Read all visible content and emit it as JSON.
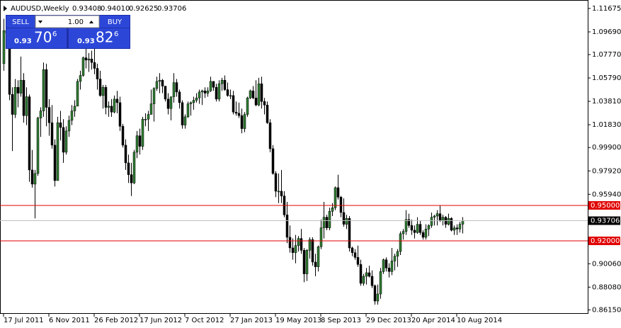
{
  "chart_data": {
    "type": "candlestick",
    "header": {
      "symbol": "AUDUSD,Weekly",
      "values": [
        "0.93408",
        "0.94010",
        "0.92625",
        "0.93706"
      ]
    },
    "trade_panel": {
      "sell": "SELL",
      "lot": "1.00",
      "buy": "BUY",
      "sell_big": "0.93",
      "sell_pips": "70",
      "sell_frac": "6",
      "buy_big": "0.93",
      "buy_pips": "82",
      "buy_frac": "6"
    },
    "bull_color": "#2f7d32",
    "bear_color": "#000000",
    "ylim": [
      0.8582,
      1.1209
    ],
    "yticks": [
      {
        "value": 1.11675,
        "label": "1.11675"
      },
      {
        "value": 1.0969,
        "label": "1.09690"
      },
      {
        "value": 1.0777,
        "label": "1.07770"
      },
      {
        "value": 1.0579,
        "label": "1.05790"
      },
      {
        "value": 1.0381,
        "label": "1.03810"
      },
      {
        "value": 1.0183,
        "label": "1.01830"
      },
      {
        "value": 0.999,
        "label": "0.99900"
      },
      {
        "value": 0.9792,
        "label": "0.97920"
      },
      {
        "value": 0.9594,
        "label": "0.95940"
      },
      {
        "value": 0.9006,
        "label": "0.90060"
      },
      {
        "value": 0.8808,
        "label": "0.88080"
      },
      {
        "value": 0.8615,
        "label": "0.86150"
      }
    ],
    "levels": [
      {
        "value": 0.95,
        "label": "0.95000",
        "color": "#e00000"
      },
      {
        "value": 0.92,
        "label": "0.92000",
        "color": "#e00000"
      },
      {
        "value": 0.93706,
        "label": "0.93706",
        "color": "#000000"
      }
    ],
    "categories": [
      "17 Jul 2011",
      null,
      null,
      null,
      null,
      null,
      null,
      null,
      null,
      null,
      null,
      null,
      null,
      null,
      null,
      null,
      "6 Nov 2011",
      null,
      null,
      null,
      null,
      null,
      null,
      null,
      null,
      null,
      null,
      null,
      null,
      null,
      null,
      null,
      "26 Feb 2012",
      null,
      null,
      null,
      null,
      null,
      null,
      null,
      null,
      null,
      null,
      null,
      null,
      null,
      null,
      null,
      "17 Jun 2012",
      null,
      null,
      null,
      null,
      null,
      null,
      null,
      null,
      null,
      null,
      null,
      null,
      null,
      null,
      null,
      "7 Oct 2012",
      null,
      null,
      null,
      null,
      null,
      null,
      null,
      null,
      null,
      null,
      null,
      null,
      null,
      null,
      null,
      "27 Jan 2013",
      null,
      null,
      null,
      null,
      null,
      null,
      null,
      null,
      null,
      null,
      null,
      null,
      null,
      null,
      null,
      "19 May 2013",
      null,
      null,
      null,
      null,
      null,
      null,
      null,
      null,
      null,
      null,
      null,
      null,
      null,
      null,
      null,
      "8 Sep 2013",
      null,
      null,
      null,
      null,
      null,
      null,
      null,
      null,
      null,
      null,
      null,
      null,
      null,
      null,
      null,
      "29 Dec 2013",
      null,
      null,
      null,
      null,
      null,
      null,
      null,
      null,
      null,
      null,
      null,
      null,
      null,
      null,
      null,
      "20 Apr 2014",
      null,
      null,
      null,
      null,
      null,
      null,
      null,
      null,
      null,
      null,
      null,
      null,
      null,
      null,
      null,
      "10 Aug 2014",
      null,
      null
    ],
    "ohlc": [
      [
        1.07,
        1.108,
        1.064,
        1.098
      ],
      [
        1.098,
        1.108,
        1.09,
        1.096
      ],
      [
        1.096,
        1.101,
        1.039,
        1.044
      ],
      [
        1.044,
        1.05,
        0.996,
        1.027
      ],
      [
        1.027,
        1.057,
        1.024,
        1.05
      ],
      [
        1.05,
        1.056,
        1.033,
        1.045
      ],
      [
        1.045,
        1.076,
        1.042,
        1.056
      ],
      [
        1.056,
        1.062,
        1.02,
        1.026
      ],
      [
        1.026,
        1.05,
        1.018,
        1.042
      ],
      [
        1.042,
        1.044,
        0.97,
        0.98
      ],
      [
        0.98,
        0.997,
        0.965,
        0.968
      ],
      [
        0.968,
        0.98,
        0.939,
        0.977
      ],
      [
        0.977,
        1.025,
        0.975,
        1.024
      ],
      [
        1.024,
        1.033,
        1.008,
        1.03
      ],
      [
        1.03,
        1.071,
        1.025,
        1.065
      ],
      [
        1.065,
        1.07,
        1.017,
        1.033
      ],
      [
        1.033,
        1.04,
        1.009,
        1.02
      ],
      [
        1.02,
        1.035,
        0.998,
        1.001
      ],
      [
        1.001,
        1.006,
        0.966,
        0.971
      ],
      [
        0.971,
        1.025,
        0.971,
        1.02
      ],
      [
        1.02,
        1.03,
        1.005,
        1.016
      ],
      [
        1.016,
        1.023,
        0.986,
        0.995
      ],
      [
        0.995,
        1.017,
        0.993,
        1.013
      ],
      [
        1.013,
        1.026,
        1.008,
        1.022
      ],
      [
        1.022,
        1.035,
        1.018,
        1.03
      ],
      [
        1.03,
        1.039,
        1.025,
        1.034
      ],
      [
        1.034,
        1.057,
        1.034,
        1.055
      ],
      [
        1.055,
        1.064,
        1.048,
        1.06
      ],
      [
        1.06,
        1.076,
        1.059,
        1.075
      ],
      [
        1.075,
        1.084,
        1.066,
        1.073
      ],
      [
        1.073,
        1.079,
        1.063,
        1.074
      ],
      [
        1.074,
        1.081,
        1.065,
        1.071
      ],
      [
        1.071,
        1.086,
        1.061,
        1.066
      ],
      [
        1.066,
        1.07,
        1.048,
        1.057
      ],
      [
        1.057,
        1.064,
        1.042,
        1.043
      ],
      [
        1.043,
        1.052,
        1.032,
        1.05
      ],
      [
        1.05,
        1.052,
        1.027,
        1.033
      ],
      [
        1.033,
        1.038,
        1.025,
        1.034
      ],
      [
        1.034,
        1.04,
        1.025,
        1.029
      ],
      [
        1.029,
        1.043,
        1.028,
        1.04
      ],
      [
        1.04,
        1.047,
        1.028,
        1.037
      ],
      [
        1.037,
        1.042,
        1.013,
        1.017
      ],
      [
        1.017,
        1.019,
        0.999,
        1.001
      ],
      [
        1.001,
        1.006,
        0.98,
        0.986
      ],
      [
        0.986,
        0.993,
        0.969,
        0.976
      ],
      [
        0.976,
        0.986,
        0.958,
        0.969
      ],
      [
        0.969,
        0.997,
        0.968,
        0.995
      ],
      [
        0.995,
        1.013,
        0.99,
        1.009
      ],
      [
        1.009,
        1.015,
        0.993,
        1.0
      ],
      [
        1.0,
        1.025,
        0.997,
        1.023
      ],
      [
        1.023,
        1.028,
        1.017,
        1.023
      ],
      [
        1.023,
        1.03,
        1.013,
        1.027
      ],
      [
        1.027,
        1.048,
        1.027,
        1.036
      ],
      [
        1.036,
        1.05,
        1.021,
        1.049
      ],
      [
        1.049,
        1.059,
        1.047,
        1.055
      ],
      [
        1.055,
        1.062,
        1.045,
        1.056
      ],
      [
        1.056,
        1.057,
        1.045,
        1.051
      ],
      [
        1.051,
        1.051,
        1.038,
        1.04
      ],
      [
        1.04,
        1.045,
        1.027,
        1.032
      ],
      [
        1.032,
        1.042,
        1.022,
        1.042
      ],
      [
        1.042,
        1.062,
        1.037,
        1.054
      ],
      [
        1.054,
        1.057,
        1.042,
        1.046
      ],
      [
        1.046,
        1.048,
        1.032,
        1.037
      ],
      [
        1.037,
        1.039,
        1.015,
        1.018
      ],
      [
        1.018,
        1.027,
        1.015,
        1.025
      ],
      [
        1.025,
        1.038,
        1.024,
        1.036
      ],
      [
        1.036,
        1.038,
        1.026,
        1.037
      ],
      [
        1.037,
        1.042,
        1.031,
        1.039
      ],
      [
        1.039,
        1.045,
        1.037,
        1.041
      ],
      [
        1.041,
        1.048,
        1.036,
        1.046
      ],
      [
        1.046,
        1.048,
        1.035,
        1.047
      ],
      [
        1.047,
        1.05,
        1.041,
        1.045
      ],
      [
        1.045,
        1.05,
        1.042,
        1.047
      ],
      [
        1.047,
        1.059,
        1.046,
        1.055
      ],
      [
        1.055,
        1.055,
        1.047,
        1.05
      ],
      [
        1.05,
        1.053,
        1.038,
        1.04
      ],
      [
        1.04,
        1.056,
        1.038,
        1.053
      ],
      [
        1.053,
        1.058,
        1.047,
        1.056
      ],
      [
        1.056,
        1.06,
        1.047,
        1.048
      ],
      [
        1.048,
        1.054,
        1.042,
        1.043
      ],
      [
        1.043,
        1.048,
        1.04,
        1.043
      ],
      [
        1.043,
        1.047,
        1.027,
        1.029
      ],
      [
        1.029,
        1.038,
        1.026,
        1.028
      ],
      [
        1.028,
        1.037,
        1.024,
        1.026
      ],
      [
        1.026,
        1.032,
        1.011,
        1.015
      ],
      [
        1.015,
        1.029,
        1.012,
        1.027
      ],
      [
        1.027,
        1.042,
        1.025,
        1.041
      ],
      [
        1.041,
        1.048,
        1.04,
        1.047
      ],
      [
        1.047,
        1.051,
        1.04,
        1.041
      ],
      [
        1.041,
        1.056,
        1.034,
        1.035
      ],
      [
        1.035,
        1.058,
        1.034,
        1.053
      ],
      [
        1.053,
        1.059,
        1.032,
        1.038
      ],
      [
        1.038,
        1.041,
        1.027,
        1.035
      ],
      [
        1.035,
        1.038,
        1.019,
        1.02
      ],
      [
        1.02,
        1.023,
        0.995,
        0.998
      ],
      [
        0.998,
        1.001,
        0.976,
        0.977
      ],
      [
        0.977,
        0.979,
        0.957,
        0.962
      ],
      [
        0.962,
        0.977,
        0.952,
        0.962
      ],
      [
        0.962,
        0.98,
        0.952,
        0.958
      ],
      [
        0.958,
        0.962,
        0.94,
        0.942
      ],
      [
        0.942,
        0.953,
        0.918,
        0.923
      ],
      [
        0.923,
        0.933,
        0.91,
        0.914
      ],
      [
        0.914,
        0.922,
        0.904,
        0.91
      ],
      [
        0.91,
        0.925,
        0.901,
        0.916
      ],
      [
        0.916,
        0.924,
        0.911,
        0.922
      ],
      [
        0.922,
        0.93,
        0.909,
        0.912
      ],
      [
        0.912,
        0.914,
        0.885,
        0.892
      ],
      [
        0.892,
        0.913,
        0.886,
        0.912
      ],
      [
        0.912,
        0.923,
        0.905,
        0.921
      ],
      [
        0.921,
        0.923,
        0.899,
        0.902
      ],
      [
        0.902,
        0.909,
        0.89,
        0.898
      ],
      [
        0.898,
        0.916,
        0.894,
        0.915
      ],
      [
        0.915,
        0.938,
        0.913,
        0.931
      ],
      [
        0.931,
        0.953,
        0.922,
        0.94
      ],
      [
        0.94,
        0.942,
        0.929,
        0.931
      ],
      [
        0.931,
        0.948,
        0.929,
        0.945
      ],
      [
        0.945,
        0.952,
        0.941,
        0.948
      ],
      [
        0.948,
        0.966,
        0.946,
        0.965
      ],
      [
        0.965,
        0.976,
        0.955,
        0.957
      ],
      [
        0.957,
        0.958,
        0.94,
        0.944
      ],
      [
        0.944,
        0.956,
        0.932,
        0.934
      ],
      [
        0.934,
        0.942,
        0.93,
        0.939
      ],
      [
        0.939,
        0.941,
        0.911,
        0.914
      ],
      [
        0.914,
        0.915,
        0.907,
        0.91
      ],
      [
        0.91,
        0.913,
        0.904,
        0.906
      ],
      [
        0.906,
        0.916,
        0.898,
        0.9
      ],
      [
        0.9,
        0.904,
        0.882,
        0.884
      ],
      [
        0.884,
        0.892,
        0.882,
        0.89
      ],
      [
        0.89,
        0.897,
        0.883,
        0.893
      ],
      [
        0.893,
        0.899,
        0.889,
        0.89
      ],
      [
        0.89,
        0.895,
        0.88,
        0.882
      ],
      [
        0.882,
        0.883,
        0.866,
        0.869
      ],
      [
        0.869,
        0.883,
        0.866,
        0.875
      ],
      [
        0.875,
        0.897,
        0.871,
        0.894
      ],
      [
        0.894,
        0.905,
        0.892,
        0.904
      ],
      [
        0.904,
        0.906,
        0.894,
        0.897
      ],
      [
        0.897,
        0.901,
        0.889,
        0.894
      ],
      [
        0.894,
        0.914,
        0.891,
        0.903
      ],
      [
        0.903,
        0.909,
        0.895,
        0.907
      ],
      [
        0.907,
        0.913,
        0.898,
        0.911
      ],
      [
        0.911,
        0.928,
        0.908,
        0.926
      ],
      [
        0.926,
        0.93,
        0.921,
        0.928
      ],
      [
        0.928,
        0.946,
        0.925,
        0.938
      ],
      [
        0.938,
        0.943,
        0.931,
        0.933
      ],
      [
        0.933,
        0.938,
        0.925,
        0.929
      ],
      [
        0.929,
        0.933,
        0.922,
        0.927
      ],
      [
        0.927,
        0.94,
        0.926,
        0.934
      ],
      [
        0.934,
        0.937,
        0.925,
        0.927
      ],
      [
        0.927,
        0.929,
        0.921,
        0.923
      ],
      [
        0.923,
        0.934,
        0.921,
        0.93
      ],
      [
        0.93,
        0.934,
        0.924,
        0.933
      ],
      [
        0.933,
        0.944,
        0.931,
        0.94
      ],
      [
        0.94,
        0.942,
        0.933,
        0.941
      ],
      [
        0.941,
        0.946,
        0.933,
        0.943
      ],
      [
        0.943,
        0.95,
        0.936,
        0.937
      ],
      [
        0.937,
        0.942,
        0.933,
        0.94
      ],
      [
        0.94,
        0.941,
        0.931,
        0.934
      ],
      [
        0.934,
        0.943,
        0.933,
        0.939
      ],
      [
        0.939,
        0.94,
        0.928,
        0.929
      ],
      [
        0.929,
        0.933,
        0.925,
        0.931
      ],
      [
        0.931,
        0.934,
        0.925,
        0.93
      ],
      [
        0.93,
        0.936,
        0.927,
        0.934
      ],
      [
        0.93408,
        0.9401,
        0.92625,
        0.93706
      ]
    ]
  }
}
